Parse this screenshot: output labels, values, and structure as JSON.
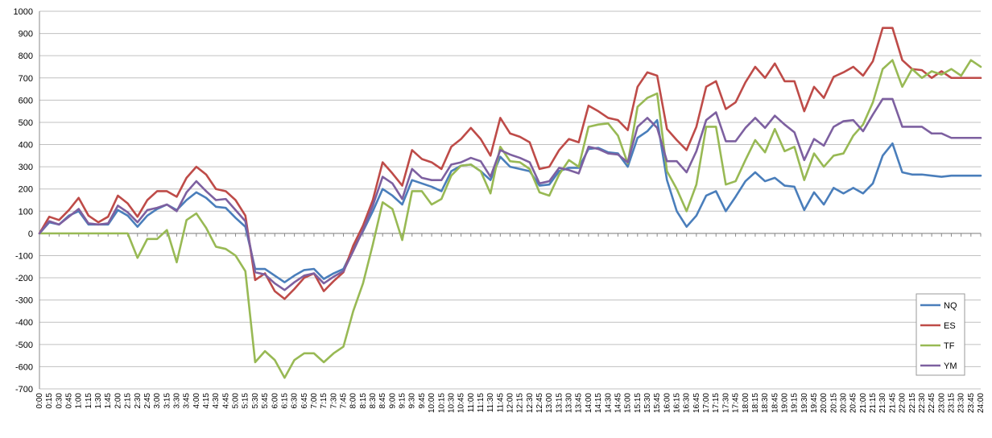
{
  "chart_data": {
    "type": "line",
    "title": "",
    "xlabel": "",
    "ylabel": "",
    "ylim": [
      -700,
      1000
    ],
    "ytick_step": 100,
    "grid": "horizontal",
    "legend_position": "bottom-right",
    "x_labels": [
      "0:00",
      "0:15",
      "0:30",
      "0:45",
      "1:00",
      "1:15",
      "1:30",
      "1:45",
      "2:00",
      "2:15",
      "2:30",
      "2:45",
      "3:00",
      "3:15",
      "3:30",
      "3:45",
      "4:00",
      "4:15",
      "4:30",
      "4:45",
      "5:00",
      "5:15",
      "5:30",
      "5:45",
      "6:00",
      "6:15",
      "6:30",
      "6:45",
      "7:00",
      "7:15",
      "7:30",
      "7:45",
      "8:00",
      "8:15",
      "8:30",
      "8:45",
      "9:00",
      "9:15",
      "9:30",
      "9:45",
      "10:00",
      "10:15",
      "10:30",
      "10:45",
      "11:00",
      "11:15",
      "11:30",
      "11:45",
      "12:00",
      "12:15",
      "12:30",
      "12:45",
      "13:00",
      "13:15",
      "13:30",
      "13:45",
      "14:00",
      "14:15",
      "14:30",
      "14:45",
      "15:00",
      "15:15",
      "15:30",
      "15:45",
      "16:00",
      "16:15",
      "16:30",
      "16:45",
      "17:00",
      "17:15",
      "17:30",
      "17:45",
      "18:00",
      "18:15",
      "18:30",
      "18:45",
      "19:00",
      "19:15",
      "19:30",
      "19:45",
      "20:00",
      "20:15",
      "20:30",
      "20:45",
      "21:00",
      "21:15",
      "21:30",
      "21:45",
      "22:00",
      "22:15",
      "22:30",
      "22:45",
      "23:00",
      "23:15",
      "23:30",
      "23:45",
      "24:00"
    ],
    "series": [
      {
        "name": "NQ",
        "color": "#4a7ebb",
        "values": [
          0,
          50,
          40,
          80,
          100,
          40,
          40,
          40,
          105,
          80,
          30,
          80,
          110,
          130,
          105,
          150,
          185,
          160,
          120,
          115,
          70,
          30,
          -160,
          -160,
          -190,
          -220,
          -190,
          -165,
          -160,
          -205,
          -180,
          -160,
          -70,
          10,
          100,
          200,
          170,
          130,
          240,
          225,
          210,
          190,
          280,
          305,
          310,
          280,
          240,
          345,
          300,
          290,
          280,
          215,
          220,
          280,
          295,
          295,
          380,
          385,
          365,
          360,
          300,
          430,
          460,
          510,
          240,
          100,
          30,
          80,
          170,
          190,
          100,
          165,
          235,
          275,
          235,
          250,
          215,
          210,
          105,
          185,
          130,
          205,
          180,
          205,
          180,
          225,
          350,
          405,
          275,
          265,
          265,
          260,
          255,
          260,
          260,
          260,
          260
        ]
      },
      {
        "name": "ES",
        "color": "#be4b48",
        "values": [
          0,
          75,
          60,
          105,
          160,
          80,
          50,
          75,
          170,
          135,
          75,
          150,
          190,
          190,
          165,
          250,
          300,
          265,
          200,
          190,
          150,
          80,
          -210,
          -180,
          -260,
          -295,
          -250,
          -200,
          -180,
          -260,
          -215,
          -175,
          -55,
          35,
          150,
          320,
          270,
          215,
          375,
          335,
          320,
          290,
          390,
          425,
          475,
          425,
          350,
          520,
          450,
          435,
          410,
          290,
          300,
          375,
          425,
          410,
          575,
          550,
          520,
          510,
          465,
          660,
          725,
          710,
          470,
          420,
          375,
          480,
          660,
          685,
          560,
          590,
          680,
          750,
          700,
          765,
          685,
          685,
          550,
          660,
          610,
          705,
          725,
          750,
          710,
          775,
          925,
          925,
          780,
          740,
          735,
          700,
          730,
          700,
          700,
          700,
          700
        ]
      },
      {
        "name": "TF",
        "color": "#98b954",
        "values": [
          0,
          0,
          0,
          0,
          0,
          0,
          0,
          0,
          0,
          0,
          -110,
          -25,
          -25,
          15,
          -130,
          60,
          90,
          25,
          -60,
          -70,
          -100,
          -170,
          -580,
          -530,
          -570,
          -650,
          -570,
          -540,
          -540,
          -580,
          -540,
          -510,
          -350,
          -225,
          -50,
          140,
          110,
          -30,
          190,
          190,
          130,
          155,
          260,
          305,
          310,
          280,
          180,
          390,
          325,
          320,
          290,
          185,
          170,
          265,
          330,
          300,
          480,
          490,
          495,
          440,
          315,
          570,
          610,
          630,
          280,
          200,
          100,
          220,
          480,
          480,
          220,
          235,
          330,
          420,
          365,
          470,
          370,
          390,
          240,
          360,
          300,
          350,
          360,
          440,
          490,
          590,
          740,
          780,
          660,
          740,
          700,
          730,
          715,
          740,
          710,
          780,
          750
        ]
      },
      {
        "name": "YM",
        "color": "#7d60a0",
        "values": [
          0,
          55,
          40,
          75,
          110,
          45,
          40,
          45,
          125,
          95,
          50,
          105,
          115,
          130,
          100,
          185,
          235,
          190,
          150,
          155,
          105,
          55,
          -175,
          -185,
          -225,
          -255,
          -220,
          -190,
          -180,
          -225,
          -195,
          -170,
          -80,
          15,
          125,
          255,
          225,
          155,
          290,
          250,
          240,
          240,
          310,
          320,
          340,
          325,
          255,
          375,
          355,
          340,
          320,
          225,
          235,
          295,
          285,
          270,
          390,
          380,
          360,
          355,
          320,
          480,
          520,
          475,
          325,
          325,
          275,
          370,
          510,
          545,
          415,
          415,
          475,
          520,
          475,
          530,
          490,
          455,
          330,
          425,
          395,
          480,
          505,
          510,
          460,
          535,
          605,
          605,
          480,
          480,
          480,
          450,
          450,
          430,
          430,
          430,
          430
        ]
      }
    ]
  }
}
